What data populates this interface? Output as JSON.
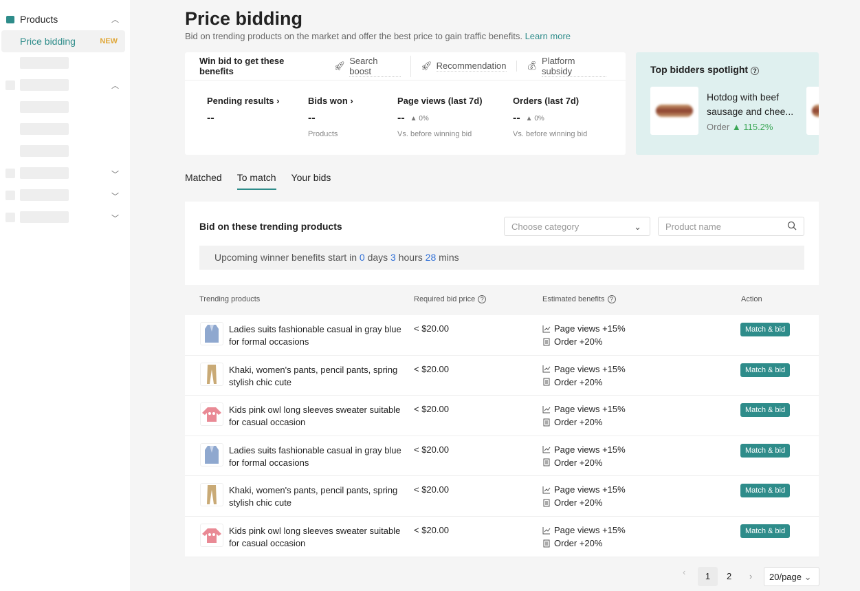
{
  "sidebar": {
    "section": "Products",
    "active_item": "Price bidding",
    "badge": "NEW"
  },
  "header": {
    "title": "Price bidding",
    "subtitle": "Bid on trending products on the market and offer the best price to gain traffic benefits.",
    "learn_more": "Learn more"
  },
  "benefits": {
    "heading": "Win bid to get these benefits",
    "items": [
      "Search boost",
      "Recommendation",
      "Platform subsidy"
    ]
  },
  "stats": [
    {
      "label": "Pending results",
      "value": "--",
      "note": ""
    },
    {
      "label": "Bids won",
      "value": "--",
      "note": "Products"
    },
    {
      "label": "Page views (last 7d)",
      "value": "--",
      "change": "0%",
      "note": "Vs. before winning bid"
    },
    {
      "label": "Orders (last 7d)",
      "value": "--",
      "change": "0%",
      "note": "Vs. before winning bid"
    }
  ],
  "spotlight": {
    "title": "Top bidders spotlight",
    "product": "Hotdog with beef sausage and chee...",
    "metric": "Order",
    "change": "115.2%"
  },
  "tabs": [
    "Matched",
    "To match",
    "Your bids"
  ],
  "panel": {
    "title": "Bid on these trending products",
    "category_placeholder": "Choose category",
    "search_placeholder": "Product name",
    "notice": {
      "prefix": "Upcoming winner benefits start in",
      "days": "0",
      "days_label": "days",
      "hours": "3",
      "hours_label": "hours",
      "mins": "28",
      "mins_label": "mins"
    }
  },
  "table": {
    "columns": [
      "Trending products",
      "Required bid price",
      "Estimated benefits",
      "Action"
    ],
    "rows": [
      {
        "name": "Ladies suits fashionable casual in gray blue for formal occasions",
        "price": "< $20.00",
        "benefit1": "Page views +15%",
        "benefit2": "Order +20%",
        "action": "Match & bid",
        "img": "suit"
      },
      {
        "name": "Khaki, women's pants, pencil pants, spring stylish chic cute",
        "price": "< $20.00",
        "benefit1": "Page views +15%",
        "benefit2": "Order +20%",
        "action": "Match & bid",
        "img": "pants"
      },
      {
        "name": "Kids pink owl long sleeves sweater suitable for casual occasion",
        "price": "< $20.00",
        "benefit1": "Page views +15%",
        "benefit2": "Order +20%",
        "action": "Match & bid",
        "img": "sweater"
      },
      {
        "name": "Ladies suits fashionable casual in gray blue for formal occasions",
        "price": "< $20.00",
        "benefit1": "Page views +15%",
        "benefit2": "Order +20%",
        "action": "Match & bid",
        "img": "suit"
      },
      {
        "name": "Khaki, women's pants, pencil pants, spring stylish chic cute",
        "price": "< $20.00",
        "benefit1": "Page views +15%",
        "benefit2": "Order +20%",
        "action": "Match & bid",
        "img": "pants"
      },
      {
        "name": "Kids pink owl long sleeves sweater suitable for casual occasion",
        "price": "< $20.00",
        "benefit1": "Page views +15%",
        "benefit2": "Order +20%",
        "action": "Match & bid",
        "img": "sweater"
      }
    ]
  },
  "pagination": {
    "pages": [
      "1",
      "2"
    ],
    "current": "1",
    "page_size": "20/page"
  },
  "colors": {
    "accent": "#2e8c8a",
    "badge": "#e0a83a",
    "positive": "#3aa655",
    "countdown": "#2f6fd6"
  }
}
